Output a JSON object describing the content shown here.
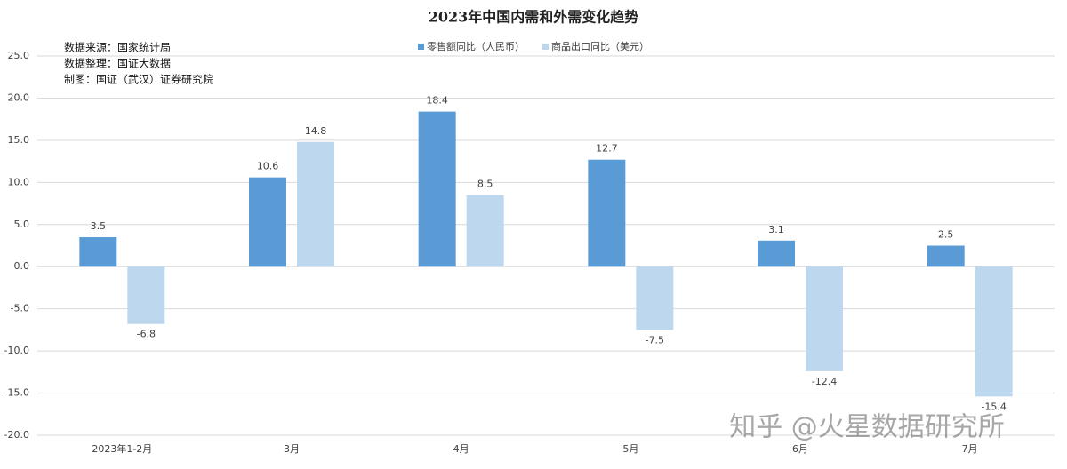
{
  "chart_data": {
    "type": "bar",
    "title": "2023年中国内需和外需变化趋势",
    "annotations": [
      "数据来源：国家统计局",
      "数据整理：国证大数据",
      "制图：国证（武汉）证券研究院"
    ],
    "watermark": "知乎 @火星数据研究所",
    "categories": [
      "2023年1-2月",
      "3月",
      "4月",
      "5月",
      "6月",
      "7月"
    ],
    "series": [
      {
        "name": "零售额同比（人民币）",
        "color": "#5b9bd5",
        "values": [
          3.5,
          10.6,
          18.4,
          12.7,
          3.1,
          2.5
        ]
      },
      {
        "name": "商品出口同比（美元）",
        "color": "#bdd7ee",
        "values": [
          -6.8,
          14.8,
          8.5,
          -7.5,
          -12.4,
          -15.4
        ]
      }
    ],
    "ylim": [
      -20,
      25
    ],
    "yticks": [
      {
        "value": -20,
        "label": "-20.0"
      },
      {
        "value": -15,
        "label": "-15.0"
      },
      {
        "value": -10,
        "label": "-10.0"
      },
      {
        "value": -5,
        "label": "-5.0"
      },
      {
        "value": 0,
        "label": "0.0"
      },
      {
        "value": 5,
        "label": "5.0"
      },
      {
        "value": 10,
        "label": "10.0"
      },
      {
        "value": 15,
        "label": "15.0"
      },
      {
        "value": 20,
        "label": "20.0"
      },
      {
        "value": 25,
        "label": "25.0"
      }
    ],
    "grid": true,
    "legend": "top"
  }
}
